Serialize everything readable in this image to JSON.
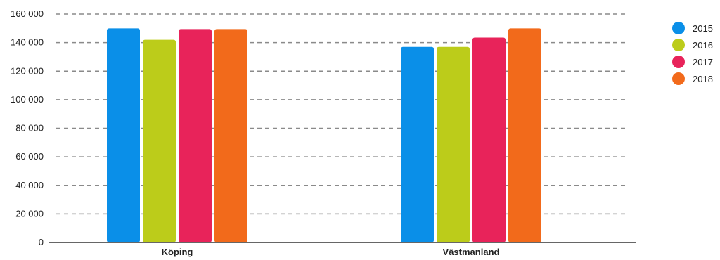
{
  "chart_data": {
    "type": "bar",
    "categories": [
      "Köping",
      "Västmanland"
    ],
    "series": [
      {
        "name": "2015",
        "color": "#0a8fe8",
        "values": [
          150000,
          137000
        ]
      },
      {
        "name": "2016",
        "color": "#bccc1a",
        "values": [
          142000,
          137000
        ]
      },
      {
        "name": "2017",
        "color": "#e8235a",
        "values": [
          149500,
          143500
        ]
      },
      {
        "name": "2018",
        "color": "#f26a1b",
        "values": [
          149500,
          150000
        ]
      }
    ],
    "ylim": [
      0,
      160000
    ],
    "yticks": [
      0,
      20000,
      40000,
      60000,
      80000,
      100000,
      120000,
      140000,
      160000
    ],
    "ytick_labels": [
      "0",
      "20 000",
      "40 000",
      "60 000",
      "80 000",
      "100 000",
      "120 000",
      "140 000",
      "160 000"
    ],
    "grid": true,
    "legend_position": "right",
    "title": "",
    "xlabel": "",
    "ylabel": ""
  }
}
